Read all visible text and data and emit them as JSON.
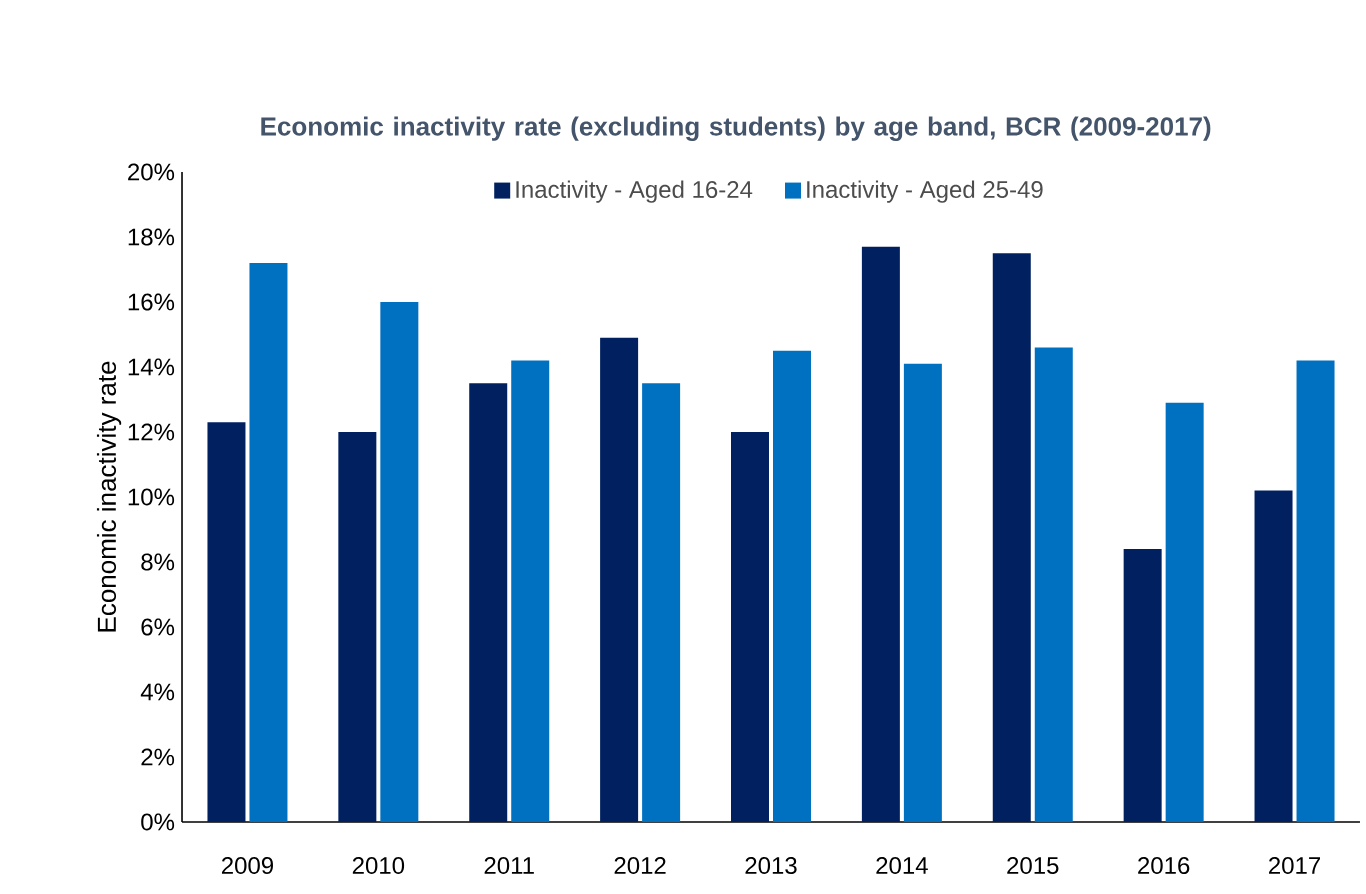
{
  "chart_data": {
    "type": "bar",
    "title": "Economic inactivity rate (excluding students) by age band, BCR (2009-2017)",
    "ylabel": "Economic inactivity rate",
    "categories": [
      "2009",
      "2010",
      "2011",
      "2012",
      "2013",
      "2014",
      "2015",
      "2016",
      "2017"
    ],
    "series": [
      {
        "name": "Inactivity - Aged 16-24",
        "color": "#002060",
        "values": [
          12.3,
          12.0,
          13.5,
          14.9,
          12.0,
          17.7,
          17.5,
          8.4,
          10.2
        ]
      },
      {
        "name": "Inactivity - Aged 25-49",
        "color": "#0070c0",
        "values": [
          17.2,
          16.0,
          14.2,
          13.5,
          14.5,
          14.1,
          14.6,
          12.9,
          14.2
        ]
      }
    ],
    "ylim": [
      0,
      20
    ],
    "yticks": [
      {
        "value": 0,
        "label": "0%"
      },
      {
        "value": 2,
        "label": "2%"
      },
      {
        "value": 4,
        "label": "4%"
      },
      {
        "value": 6,
        "label": "6%"
      },
      {
        "value": 8,
        "label": "8%"
      },
      {
        "value": 10,
        "label": "10%"
      },
      {
        "value": 12,
        "label": "12%"
      },
      {
        "value": 14,
        "label": "14%"
      },
      {
        "value": 16,
        "label": "16%"
      },
      {
        "value": 18,
        "label": "18%"
      },
      {
        "value": 20,
        "label": "20%"
      }
    ],
    "grid": false,
    "legend": "top"
  }
}
